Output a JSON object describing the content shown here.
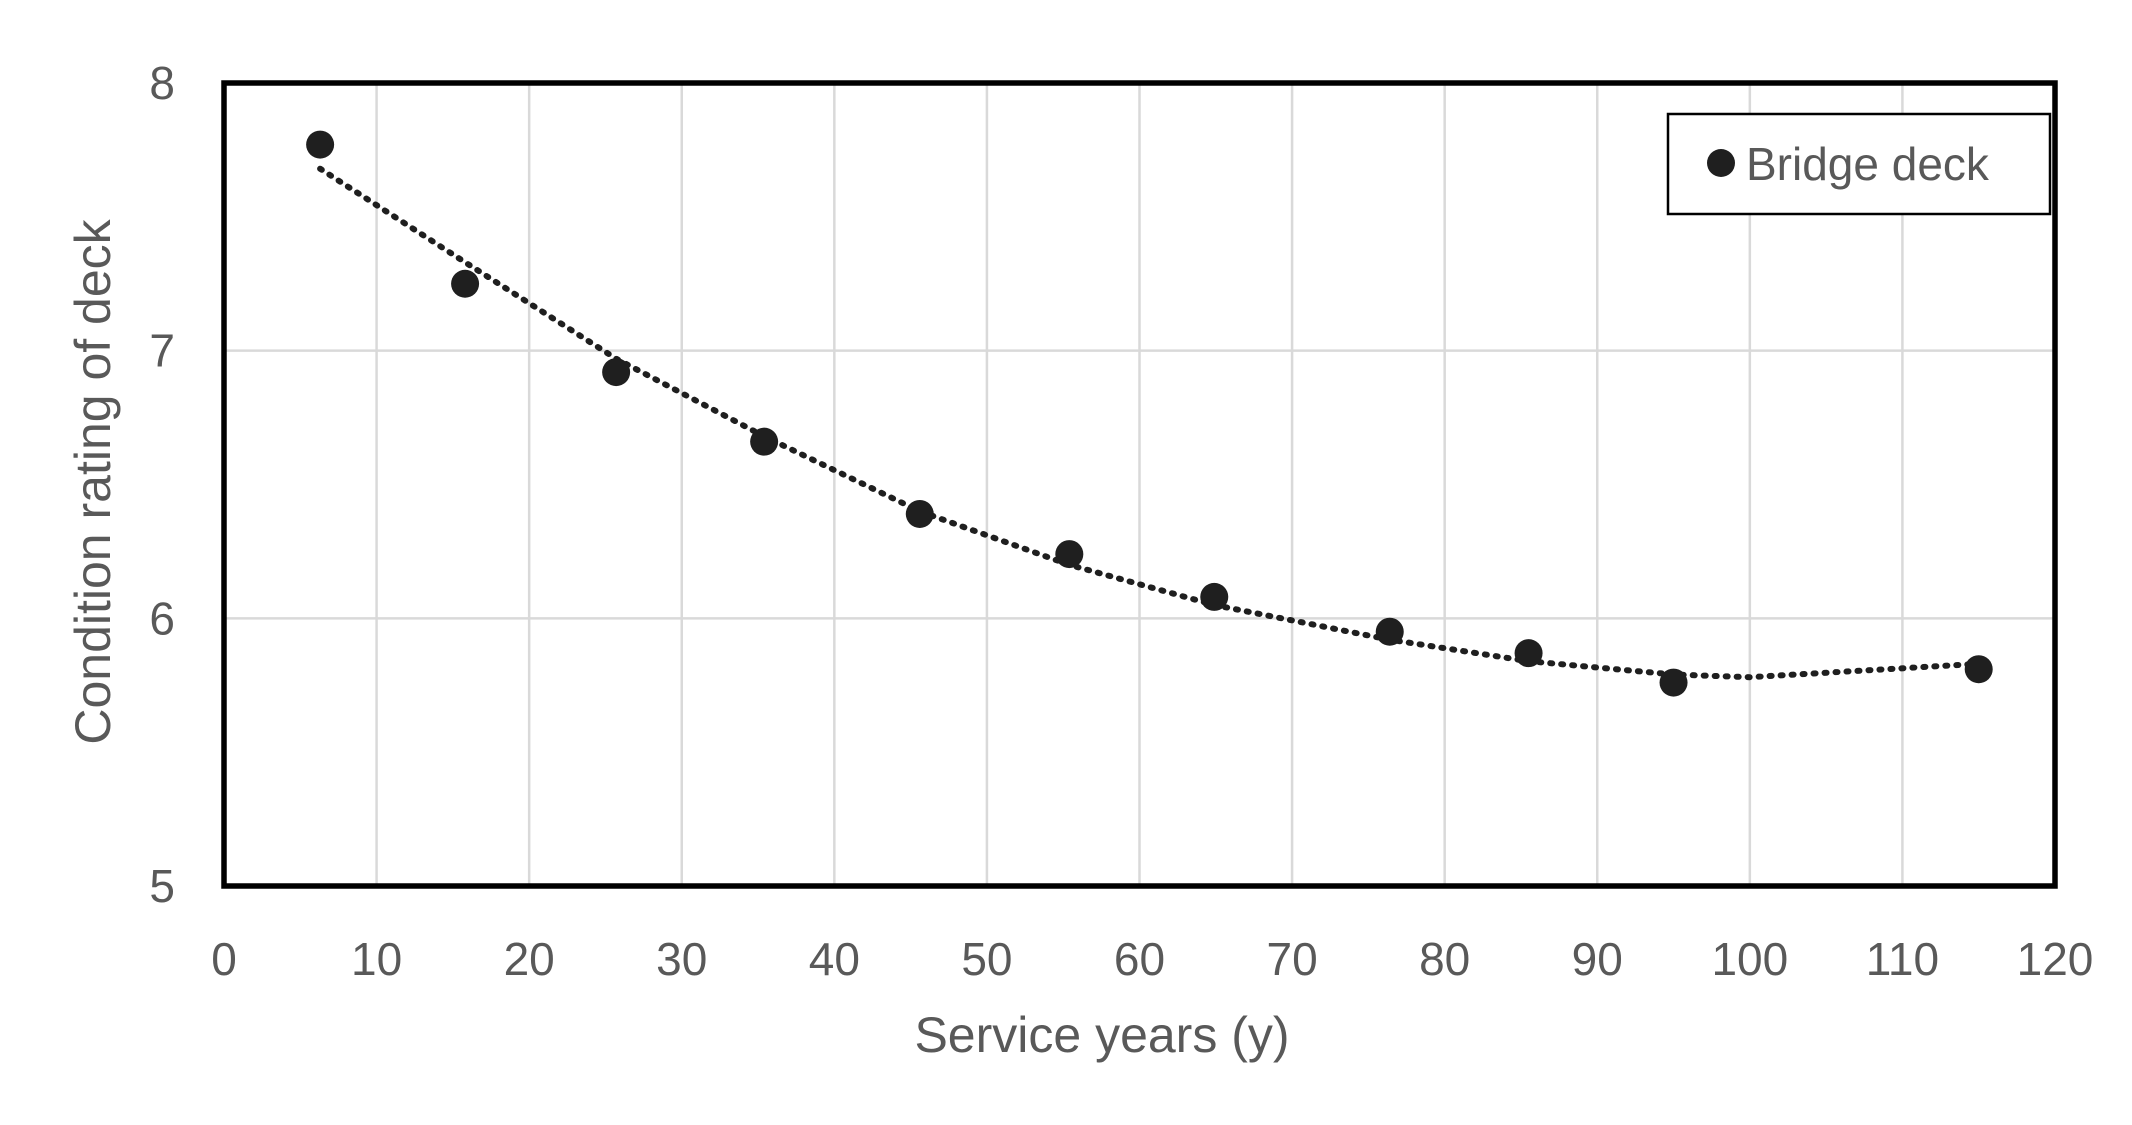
{
  "chart_data": {
    "type": "scatter",
    "xlabel": "Service years (y)",
    "ylabel": "Condition rating of deck",
    "xlim": [
      0,
      120
    ],
    "ylim": [
      5,
      8
    ],
    "x_ticks": [
      0,
      10,
      20,
      30,
      40,
      50,
      60,
      70,
      80,
      90,
      100,
      110,
      120
    ],
    "y_ticks": [
      5,
      6,
      7,
      8
    ],
    "x_tick_labels": [
      "0",
      "10",
      "20",
      "30",
      "40",
      "50",
      "60",
      "70",
      "80",
      "90",
      "100",
      "110",
      "120"
    ],
    "y_tick_labels": [
      "5",
      "6",
      "7",
      "8"
    ],
    "grid": true,
    "legend_position": "top-right",
    "series": [
      {
        "name": "Bridge deck",
        "marker": "circle",
        "color": "#1f1f1f",
        "points": [
          {
            "x": 6.3,
            "y": 7.77
          },
          {
            "x": 15.8,
            "y": 7.25
          },
          {
            "x": 25.7,
            "y": 6.92
          },
          {
            "x": 35.4,
            "y": 6.66
          },
          {
            "x": 45.6,
            "y": 6.39
          },
          {
            "x": 55.4,
            "y": 6.24
          },
          {
            "x": 64.9,
            "y": 6.08
          },
          {
            "x": 76.4,
            "y": 5.95
          },
          {
            "x": 85.5,
            "y": 5.87
          },
          {
            "x": 95.0,
            "y": 5.76
          },
          {
            "x": 115.0,
            "y": 5.81
          }
        ]
      }
    ],
    "trendline": {
      "style": "dotted",
      "color": "#1f1f1f",
      "x_range": [
        6.3,
        115.0
      ],
      "points": [
        {
          "x": 6.3,
          "y": 7.68
        },
        {
          "x": 15.8,
          "y": 7.33
        },
        {
          "x": 25.7,
          "y": 6.97
        },
        {
          "x": 35.4,
          "y": 6.68
        },
        {
          "x": 45.6,
          "y": 6.4
        },
        {
          "x": 55.4,
          "y": 6.2
        },
        {
          "x": 64.9,
          "y": 6.05
        },
        {
          "x": 76.4,
          "y": 5.92
        },
        {
          "x": 85.5,
          "y": 5.84
        },
        {
          "x": 95.0,
          "y": 5.79
        },
        {
          "x": 100.0,
          "y": 5.78
        },
        {
          "x": 115.0,
          "y": 5.83
        }
      ]
    }
  },
  "colors": {
    "axis_text": "#595959",
    "grid": "#d9d9d9",
    "frame": "#000000",
    "marker": "#1f1f1f"
  }
}
